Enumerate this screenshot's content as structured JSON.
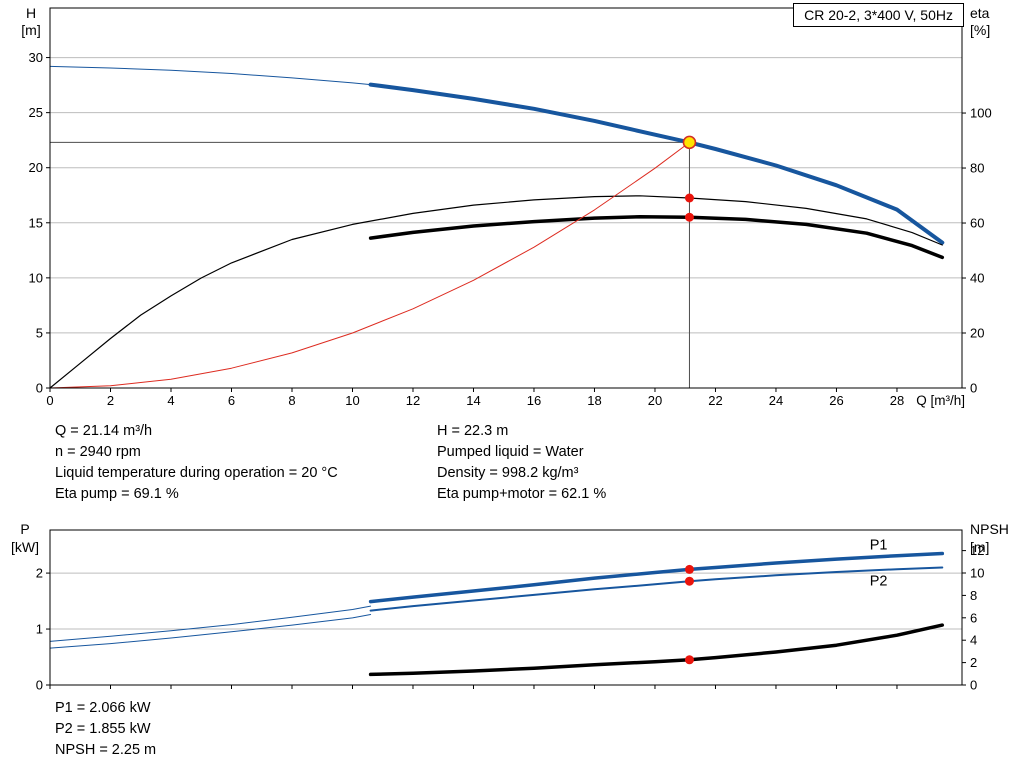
{
  "title_box": "CR 20-2, 3*400 V, 50Hz",
  "colors": {
    "curve_blue": "#17569e",
    "curve_black": "#000000",
    "curve_red": "#dd2b20",
    "marker_red": "#ea140c",
    "duty_fill": "#ffe400",
    "duty_ring": "#d22d26",
    "grid": "#bdbdbd",
    "guide": "#4d4d4d",
    "axis": "#000000"
  },
  "info_block": {
    "left": [
      "Q = 21.14 m³/h",
      "n = 2940 rpm",
      "Liquid temperature during operation = 20 °C",
      "Eta pump = 69.1 %"
    ],
    "right": [
      "H = 22.3 m",
      "Pumped liquid = Water",
      "Density = 998.2 kg/m³",
      "Eta pump+motor = 62.1 %"
    ]
  },
  "results_block": [
    "P1 = 2.066 kW",
    "P2 = 1.855 kW",
    "NPSH = 2.25 m"
  ],
  "chart_data": [
    {
      "id": "hq-eta",
      "type": "line",
      "title": "CR 20-2, 3*400 V, 50Hz",
      "x": {
        "min": 0,
        "max": 30.15,
        "ticks": [
          0,
          2,
          4,
          6,
          8,
          10,
          12,
          14,
          16,
          18,
          20,
          22,
          24,
          26,
          28
        ],
        "label": "Q [m³/h]",
        "show_labels": true
      },
      "y_left": {
        "min": 0,
        "max": 34.5,
        "ticks": [
          0,
          5,
          10,
          15,
          20,
          25,
          30
        ],
        "label_lines": [
          "H",
          "[m]"
        ]
      },
      "y_right": {
        "min": 0,
        "max": 138.2,
        "ticks": [
          0,
          20,
          40,
          60,
          80,
          100
        ],
        "label_lines": [
          "eta",
          "[%]"
        ]
      },
      "grid": true,
      "series": [
        {
          "id": "pump-curve-low-flow",
          "name": "H-Q (low flow)",
          "axis": "left",
          "color": "#17569e",
          "width": 1,
          "points": [
            [
              0,
              29.2
            ],
            [
              2,
              29.05
            ],
            [
              4,
              28.85
            ],
            [
              6,
              28.55
            ],
            [
              8,
              28.15
            ],
            [
              10,
              27.7
            ],
            [
              10.6,
              27.55
            ]
          ]
        },
        {
          "id": "pump-curve",
          "name": "H-Q",
          "axis": "left",
          "color": "#17569e",
          "width": 4,
          "points": [
            [
              10.6,
              27.55
            ],
            [
              12,
              27.05
            ],
            [
              14,
              26.25
            ],
            [
              16,
              25.35
            ],
            [
              18,
              24.25
            ],
            [
              20,
              23.0
            ],
            [
              21.14,
              22.3
            ],
            [
              22,
              21.7
            ],
            [
              24,
              20.2
            ],
            [
              26,
              18.4
            ],
            [
              28,
              16.2
            ],
            [
              29.5,
              13.2
            ]
          ]
        },
        {
          "id": "eta-pump",
          "name": "Eta pump",
          "axis": "right",
          "color": "#000000",
          "width": 1.2,
          "points": [
            [
              0,
              0
            ],
            [
              1,
              9
            ],
            [
              2,
              18
            ],
            [
              3,
              26.5
            ],
            [
              4,
              33.5
            ],
            [
              5,
              40
            ],
            [
              6,
              45.5
            ],
            [
              8,
              54
            ],
            [
              10,
              59.5
            ],
            [
              12,
              63.5
            ],
            [
              14,
              66.5
            ],
            [
              16,
              68.4
            ],
            [
              18,
              69.6
            ],
            [
              19.5,
              69.9
            ],
            [
              21.14,
              69.1
            ],
            [
              23,
              67.8
            ],
            [
              25,
              65.3
            ],
            [
              27,
              61.5
            ],
            [
              28.5,
              56.5
            ],
            [
              29.5,
              52
            ]
          ]
        },
        {
          "id": "eta-pump-motor",
          "name": "Eta pump+motor",
          "axis": "right",
          "color": "#000000",
          "width": 3.5,
          "points": [
            [
              10.6,
              54.5
            ],
            [
              12,
              56.6
            ],
            [
              14,
              58.9
            ],
            [
              16,
              60.5
            ],
            [
              18,
              61.8
            ],
            [
              19.5,
              62.3
            ],
            [
              21.14,
              62.1
            ],
            [
              23,
              61.3
            ],
            [
              25,
              59.5
            ],
            [
              27,
              56.3
            ],
            [
              28.5,
              51.8
            ],
            [
              29.5,
              47.5
            ]
          ]
        },
        {
          "id": "system-curve",
          "name": "System curve",
          "axis": "left",
          "color": "#dd2b20",
          "width": 1,
          "points": [
            [
              0,
              0
            ],
            [
              2,
              0.2
            ],
            [
              4,
              0.8
            ],
            [
              6,
              1.8
            ],
            [
              8,
              3.19
            ],
            [
              10,
              4.99
            ],
            [
              12,
              7.19
            ],
            [
              14,
              9.78
            ],
            [
              16,
              12.78
            ],
            [
              18,
              16.17
            ],
            [
              20,
              19.96
            ],
            [
              21.14,
              22.3
            ]
          ]
        }
      ],
      "guides": [
        {
          "dir": "h",
          "value": 22.3,
          "from": 0,
          "to": 21.14
        },
        {
          "dir": "v",
          "value": 21.14,
          "from": 0,
          "to": 22.3
        }
      ],
      "markers": [
        {
          "name": "eta-pump-point",
          "x": 21.14,
          "y": 69.1,
          "axis": "right",
          "r": 4.5,
          "fill": "#ea140c"
        },
        {
          "name": "eta-pump-motor-point",
          "x": 21.14,
          "y": 62.1,
          "axis": "right",
          "r": 4.5,
          "fill": "#ea140c"
        },
        {
          "name": "duty-point",
          "x": 21.14,
          "y": 22.3,
          "axis": "left",
          "r": 6,
          "fill": "#ffe400",
          "stroke": "#d22d26"
        }
      ]
    },
    {
      "id": "power-npsh",
      "type": "line",
      "x": {
        "min": 0,
        "max": 30.15,
        "ticks": [
          0,
          2,
          4,
          6,
          8,
          10,
          12,
          14,
          16,
          18,
          20,
          22,
          24,
          26,
          28
        ],
        "label": "",
        "show_labels": false
      },
      "y_left": {
        "min": 0,
        "max": 2.77,
        "ticks": [
          0,
          1,
          2
        ],
        "label_lines": [
          "P",
          "[kW]"
        ]
      },
      "y_right": {
        "min": 0,
        "max": 13.84,
        "ticks": [
          0,
          2,
          4,
          6,
          8,
          10,
          12
        ],
        "label_lines": [
          "NPSH",
          "[m]"
        ]
      },
      "grid": true,
      "series": [
        {
          "id": "p1-low-flow",
          "name": "P1 (low flow)",
          "axis": "left",
          "color": "#17569e",
          "width": 1,
          "points": [
            [
              0,
              0.78
            ],
            [
              2,
              0.87
            ],
            [
              4,
              0.97
            ],
            [
              6,
              1.08
            ],
            [
              8,
              1.21
            ],
            [
              10,
              1.35
            ],
            [
              10.6,
              1.41
            ]
          ]
        },
        {
          "id": "p1",
          "name": "P1",
          "axis": "left",
          "color": "#17569e",
          "width": 3.5,
          "points": [
            [
              10.6,
              1.49
            ],
            [
              12,
              1.57
            ],
            [
              14,
              1.68
            ],
            [
              16,
              1.79
            ],
            [
              18,
              1.91
            ],
            [
              20,
              2.01
            ],
            [
              21.14,
              2.066
            ],
            [
              22,
              2.1
            ],
            [
              24,
              2.18
            ],
            [
              26,
              2.25
            ],
            [
              28,
              2.31
            ],
            [
              29.5,
              2.35
            ]
          ],
          "label": {
            "text": "P1",
            "at": [
              27.1,
              2.42
            ]
          }
        },
        {
          "id": "p2-low-flow",
          "name": "P2 (low flow)",
          "axis": "left",
          "color": "#17569e",
          "width": 1,
          "points": [
            [
              0,
              0.66
            ],
            [
              2,
              0.74
            ],
            [
              4,
              0.84
            ],
            [
              6,
              0.95
            ],
            [
              8,
              1.07
            ],
            [
              10,
              1.2
            ],
            [
              10.6,
              1.26
            ]
          ]
        },
        {
          "id": "p2",
          "name": "P2",
          "axis": "left",
          "color": "#17569e",
          "width": 2,
          "points": [
            [
              10.6,
              1.33
            ],
            [
              12,
              1.41
            ],
            [
              14,
              1.51
            ],
            [
              16,
              1.61
            ],
            [
              18,
              1.71
            ],
            [
              20,
              1.8
            ],
            [
              21.14,
              1.855
            ],
            [
              22,
              1.89
            ],
            [
              24,
              1.96
            ],
            [
              26,
              2.02
            ],
            [
              28,
              2.07
            ],
            [
              29.5,
              2.1
            ]
          ],
          "label": {
            "text": "P2",
            "at": [
              27.1,
              1.78
            ]
          }
        },
        {
          "id": "npsh",
          "name": "NPSH",
          "axis": "right",
          "color": "#000000",
          "width": 3.5,
          "points": [
            [
              10.6,
              0.95
            ],
            [
              12,
              1.05
            ],
            [
              14,
              1.25
            ],
            [
              16,
              1.5
            ],
            [
              18,
              1.8
            ],
            [
              20,
              2.08
            ],
            [
              21.14,
              2.25
            ],
            [
              22,
              2.45
            ],
            [
              24,
              2.95
            ],
            [
              26,
              3.55
            ],
            [
              28,
              4.45
            ],
            [
              29.5,
              5.35
            ]
          ]
        }
      ],
      "guides": [],
      "markers": [
        {
          "name": "p1-point",
          "x": 21.14,
          "y": 2.066,
          "axis": "left",
          "r": 4.5,
          "fill": "#ea140c"
        },
        {
          "name": "p2-point",
          "x": 21.14,
          "y": 1.855,
          "axis": "left",
          "r": 4.5,
          "fill": "#ea140c"
        },
        {
          "name": "npsh-point",
          "x": 21.14,
          "y": 2.25,
          "axis": "right",
          "r": 4.5,
          "fill": "#ea140c"
        }
      ]
    }
  ]
}
